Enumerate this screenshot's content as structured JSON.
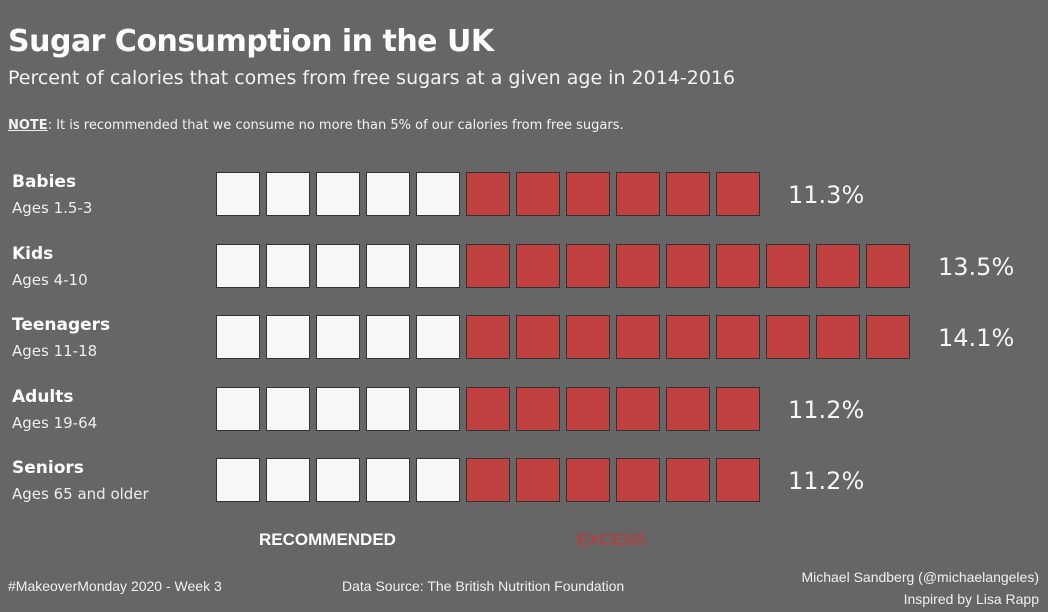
{
  "title": "Sugar Consumption in the UK",
  "subtitle": "Percent of calories that comes from free sugars at a given age in 2014-2016",
  "note": {
    "label": "NOTE",
    "text": ": It is recommended that we consume no more than 5% of our calories from free sugars."
  },
  "chart_data": {
    "type": "waffle",
    "recommended_units": 5,
    "categories": [
      "Babies",
      "Kids",
      "Teenagers",
      "Adults",
      "Seniors"
    ],
    "subcategories": [
      "Ages 1.5-3",
      "Ages 4-10",
      "Ages 11-18",
      "Ages 19-64",
      "Ages 65  and older"
    ],
    "values": [
      11.3,
      13.5,
      14.1,
      11.2,
      11.2
    ],
    "value_labels": [
      "11.3%",
      "13.5%",
      "14.1%",
      "11.2%",
      "11.2%"
    ],
    "legend": [
      {
        "name": "RECOMMENDED",
        "color": "#f7f7f7"
      },
      {
        "name": "EXCESS",
        "color": "#c0413f"
      }
    ]
  },
  "colors": {
    "background": "#666666",
    "recommended": "#f7f7f7",
    "excess": "#c0413f",
    "excess_label": "#a84442"
  },
  "footer": {
    "left": "#MakeoverMonday 2020 - Week 3",
    "source": "Data Source: The British Nutrition Foundation",
    "author": "Michael Sandberg (@michaelangeles)",
    "inspired": "Inspired by Lisa Rapp"
  }
}
